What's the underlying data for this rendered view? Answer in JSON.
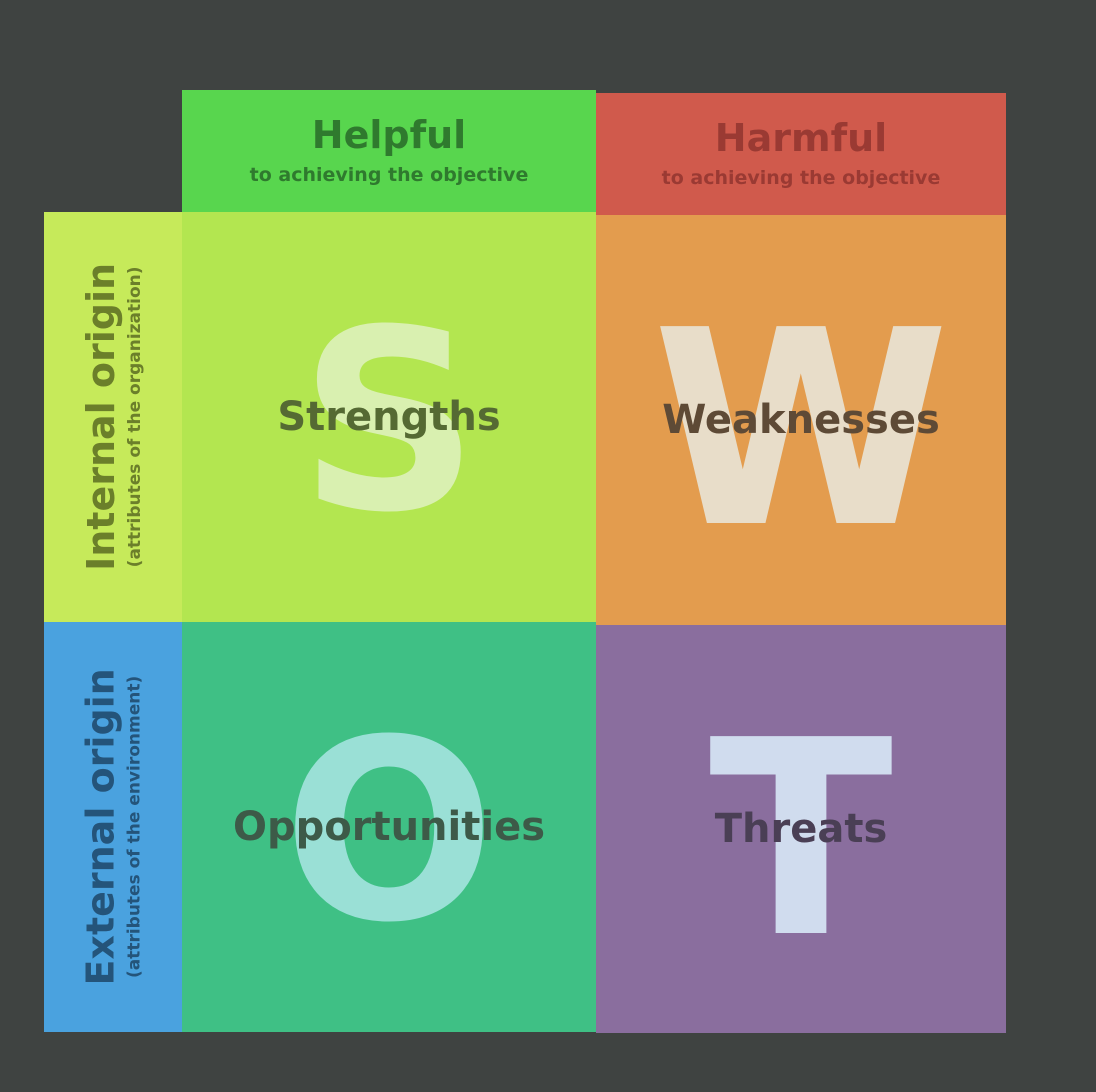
{
  "columns": {
    "helpful": {
      "title": "Helpful",
      "subtitle": "to achieving the objective"
    },
    "harmful": {
      "title": "Harmful",
      "subtitle": "to achieving the objective"
    }
  },
  "rows": {
    "internal": {
      "title": "Internal origin",
      "subtitle": "(attributes of the organization)"
    },
    "external": {
      "title": "External origin",
      "subtitle": "(attributes of the environment)"
    }
  },
  "quadrants": {
    "s": {
      "letter": "S",
      "label": "Strengths"
    },
    "w": {
      "letter": "W",
      "label": "Weaknesses"
    },
    "o": {
      "letter": "O",
      "label": "Opportunities"
    },
    "t": {
      "letter": "T",
      "label": "Threats"
    }
  },
  "colors": {
    "background": "#3f4341",
    "helpful": "#58d64e",
    "harmful": "#d05a4c",
    "internal": "#c6ea5a",
    "external": "#4aa2df",
    "strengths": "#b3e650",
    "weaknesses": "#e39c4e",
    "opportunities": "#3fc085",
    "threats": "#8a6e9e"
  }
}
